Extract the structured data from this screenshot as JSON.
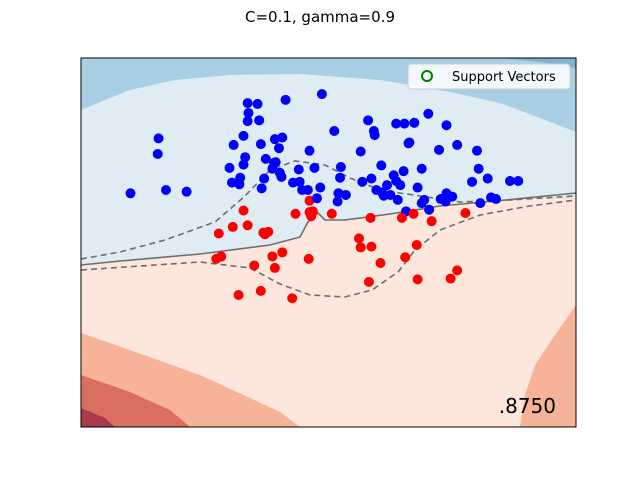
{
  "chart_data": {
    "type": "scatter",
    "title": "C=0.1, gamma=0.9",
    "xlabel": "",
    "ylabel": "",
    "xlim": [
      -3,
      3
    ],
    "ylim": [
      -2.25,
      2.25
    ],
    "grid": false,
    "legend": {
      "position": "top-right",
      "entries": [
        "Support Vectors"
      ]
    },
    "score_text": ".8750",
    "colors": {
      "class_blue": "#0000ff",
      "class_red": "#ff0000",
      "support_vector_edge": "#008000"
    },
    "series": [
      {
        "name": "",
        "color": "#0000ff",
        "points": [
          [
            -0.08,
            1.81
          ],
          [
            -2.07,
            1.08
          ],
          [
            -0.23,
            1.12
          ],
          [
            -0.84,
            1.49
          ],
          [
            0.48,
            1.49
          ],
          [
            0.55,
            1.36
          ],
          [
            0.92,
            1.45
          ],
          [
            0.97,
            1.21
          ],
          [
            0.98,
            1.22
          ],
          [
            -1.15,
            1.19
          ],
          [
            -1.08,
            0.71
          ],
          [
            -1.03,
            0.95
          ],
          [
            -1.2,
            0.91
          ],
          [
            -1.17,
            0.73
          ],
          [
            -0.36,
            0.89
          ],
          [
            0.15,
            0.92
          ],
          [
            -0.98,
            1.48
          ],
          [
            -1.03,
            1.3
          ],
          [
            -0.68,
            0.9
          ],
          [
            -0.6,
            1.15
          ],
          [
            -0.65,
            1.26
          ],
          [
            -0.66,
            0.97
          ],
          [
            1.13,
            0.9
          ],
          [
            1.34,
            1.13
          ],
          [
            -2.06,
            1.27
          ],
          [
            -1.97,
            0.64
          ],
          [
            -0.98,
            1.7
          ],
          [
            -0.81,
            0.66
          ],
          [
            -1.01,
            1.04
          ],
          [
            -0.76,
            1.02
          ],
          [
            -0.78,
            0.78
          ],
          [
            1.8,
            1.12
          ],
          [
            0.64,
            0.94
          ],
          [
            0.67,
            0.57
          ],
          [
            -0.57,
            0.8
          ],
          [
            -0.82,
            1.2
          ],
          [
            0.91,
            0.87
          ],
          [
            0.84,
            0.52
          ],
          [
            1.21,
            1.57
          ],
          [
            0.56,
            1.31
          ],
          [
            0.39,
            1.11
          ],
          [
            1.56,
            1.19
          ],
          [
            0.82,
            1.45
          ],
          [
            1.04,
            1.46
          ],
          [
            0.41,
            0.74
          ],
          [
            2.3,
            0.75
          ],
          [
            0.94,
            0.38
          ],
          [
            -0.52,
            1.74
          ],
          [
            0.58,
            0.64
          ],
          [
            1.74,
            0.74
          ],
          [
            -0.86,
            1.69
          ],
          [
            0.07,
            1.36
          ],
          [
            -0.56,
            1.28
          ],
          [
            -2.4,
            0.6
          ],
          [
            -0.97,
            1.58
          ],
          [
            -0.4,
            0.35
          ],
          [
            1.36,
            0.53
          ],
          [
            1.82,
            0.9
          ],
          [
            1.66,
            0.36
          ],
          [
            -0.21,
            0.32
          ],
          [
            1.84,
            0.48
          ],
          [
            1.97,
            0.55
          ],
          [
            1.48,
            -0.44
          ],
          [
            -1.09,
            -0.64
          ],
          [
            1.08,
            0.67
          ],
          [
            -0.44,
            -0.68
          ],
          [
            -1.07,
            0.79
          ],
          [
            1.43,
            1.43
          ],
          [
            2.03,
            0.53
          ],
          [
            1.5,
            0.56
          ],
          [
            2.2,
            0.75
          ],
          [
            1.16,
            0.52
          ],
          [
            1.42,
            0.5
          ],
          [
            -0.64,
            0.98
          ],
          [
            0.75,
            0.58
          ],
          [
            0.21,
            0.58
          ],
          [
            0.65,
            0.61
          ],
          [
            0.87,
            0.7
          ],
          [
            0.71,
            0.7
          ],
          [
            -0.35,
            0.74
          ],
          [
            -0.23,
            0.37
          ],
          [
            -0.24,
            -0.2
          ],
          [
            1.07,
            -0.03
          ],
          [
            -0.98,
            0.21
          ],
          [
            -0.59,
            0.85
          ],
          [
            0.52,
            0.78
          ],
          [
            -0.1,
            0.67
          ],
          [
            -1.03,
            0.39
          ],
          [
            0.12,
            0.6
          ],
          [
            -0.68,
            -0.17
          ],
          [
            0.04,
            0.35
          ],
          [
            1.13,
            0.48
          ],
          [
            -0.17,
            0.91
          ],
          [
            0.11,
            0.5
          ],
          [
            -1.33,
            0.11
          ],
          [
            0.93,
            -0.18
          ],
          [
            -0.9,
            -0.28
          ],
          [
            -1.36,
            -0.2
          ],
          [
            -0.79,
            0.12
          ],
          [
            -0.23,
            0.51
          ],
          [
            0.52,
            -0.05
          ],
          [
            0.89,
            0.3
          ],
          [
            -0.77,
            0.1
          ],
          [
            0.37,
            0.05
          ],
          [
            -0.56,
            -0.12
          ],
          [
            1.56,
            -0.34
          ],
          [
            -1.3,
            -0.17
          ],
          [
            0.51,
            0.3
          ],
          [
            -1.16,
            0.19
          ],
          [
            0.79,
            0.82
          ],
          [
            0.63,
            -0.25
          ],
          [
            1.08,
            -0.45
          ],
          [
            -0.65,
            -0.31
          ],
          [
            0.49,
            -0.48
          ],
          [
            -0.82,
            -0.59
          ],
          [
            -0.14,
            0.54
          ],
          [
            -0.43,
            0.73
          ],
          [
            0.14,
            0.79
          ],
          [
            1.25,
            0.26
          ],
          [
            -0.32,
            0.64
          ],
          [
            -0.19,
            0.38
          ],
          [
            0.39,
            -0.06
          ],
          [
            -0.73,
            0.13
          ],
          [
            1.93,
            0.78
          ],
          [
            1.43,
            0.6
          ],
          [
            1.22,
            0.4
          ],
          [
            0.82,
            0.75
          ],
          [
            -0.25,
            0.64
          ],
          [
            1.03,
            0.35
          ],
          [
            -1.72,
            0.62
          ]
        ]
      }
    ]
  }
}
